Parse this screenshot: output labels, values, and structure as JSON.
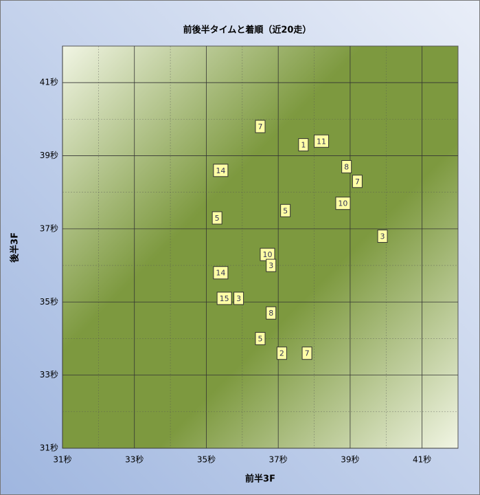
{
  "chart_data": {
    "type": "scatter",
    "title": "前後半タイムと着順（近20走）",
    "x_label": "前半3F",
    "y_label": "後半3F",
    "xlim": [
      31,
      42
    ],
    "ylim": [
      31,
      42
    ],
    "xticks": [
      {
        "value": 31,
        "label": "31秒"
      },
      {
        "value": 33,
        "label": "33秒"
      },
      {
        "value": 35,
        "label": "35秒"
      },
      {
        "value": 37,
        "label": "37秒"
      },
      {
        "value": 39,
        "label": "39秒"
      },
      {
        "value": 41,
        "label": "41秒"
      }
    ],
    "yticks": [
      {
        "value": 31,
        "label": "31秒"
      },
      {
        "value": 33,
        "label": "33秒"
      },
      {
        "value": 35,
        "label": "35秒"
      },
      {
        "value": 37,
        "label": "37秒"
      },
      {
        "value": 39,
        "label": "39秒"
      },
      {
        "value": 41,
        "label": "41秒"
      }
    ],
    "grid": true,
    "color": "#ffffa6",
    "x": [
      36.5,
      37.7,
      38.2,
      35.4,
      38.9,
      39.2,
      38.8,
      37.2,
      35.3,
      39.9,
      36.7,
      36.8,
      35.4,
      35.5,
      35.9,
      36.8,
      36.5,
      37.1,
      37.8
    ],
    "y": [
      39.8,
      39.3,
      39.4,
      38.6,
      38.7,
      38.3,
      37.7,
      37.5,
      37.3,
      36.8,
      36.3,
      36.0,
      35.8,
      35.1,
      35.1,
      34.7,
      34.0,
      33.6,
      33.6
    ],
    "labels": [
      "7",
      "1",
      "11",
      "14",
      "8",
      "7",
      "10",
      "5",
      "5",
      "3",
      "10",
      "3",
      "14",
      "15",
      "3",
      "8",
      "5",
      "2",
      "7"
    ]
  }
}
